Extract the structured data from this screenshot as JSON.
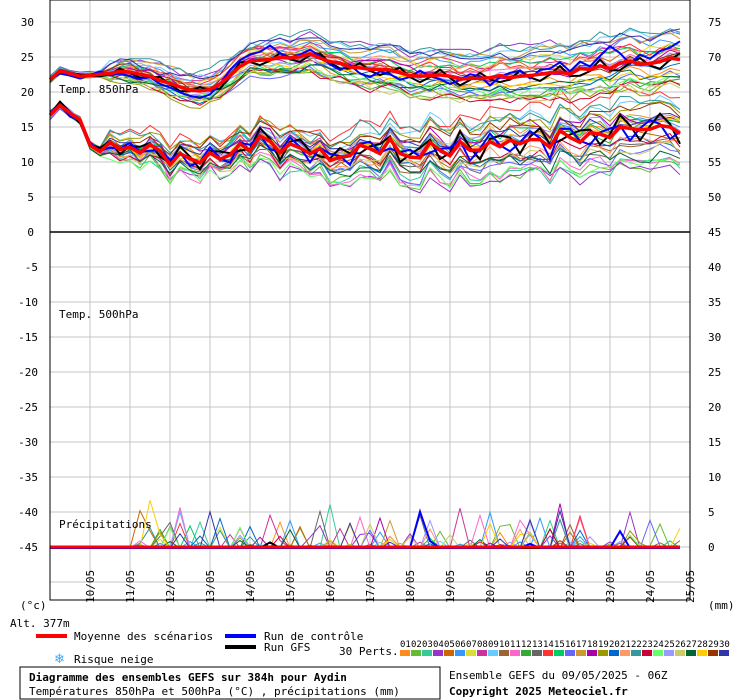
{
  "chart_data": {
    "type": "line",
    "panels": [
      {
        "label": "Temp. 850hPa",
        "left_ticks": [
          30,
          25,
          20,
          15,
          10,
          5,
          0
        ],
        "right_ticks": [
          75,
          70,
          65,
          60,
          55,
          50
        ]
      },
      {
        "label": "Temp. 500hPa",
        "left_ticks": [
          -5,
          -10,
          -15,
          -20,
          -25,
          -30,
          -35,
          -40,
          -45
        ],
        "right_ticks": [
          45,
          40,
          35,
          30,
          25,
          20,
          15,
          10,
          5,
          0
        ]
      },
      {
        "label": "Précipitations"
      }
    ],
    "left_unit": "(°c)",
    "right_unit": "(mm)",
    "x_ticks": [
      "10/05",
      "11/05",
      "12/05",
      "13/05",
      "14/05",
      "15/05",
      "16/05",
      "17/05",
      "18/05",
      "19/05",
      "20/05",
      "21/05",
      "22/05",
      "23/05",
      "24/05",
      "25/05"
    ],
    "altitude": "Alt. 377m",
    "mean_t850": [
      16.7,
      18.1,
      17.0,
      16.0,
      12.4,
      11.5,
      12.8,
      11.8,
      12.1,
      11.3,
      12.5,
      11.6,
      9.6,
      11.2,
      10.5,
      9.9,
      11.3,
      10.4,
      11.0,
      12.6,
      11.6,
      13.7,
      13.0,
      11.3,
      12.6,
      12.0,
      11.2,
      11.9,
      10.2,
      10.7,
      10.9,
      12.4,
      11.9,
      11.2,
      13.3,
      11.2,
      10.7,
      10.6,
      12.8,
      11.7,
      10.9,
      12.9,
      11.7,
      11.7,
      12.9,
      12.2,
      13.1,
      12.6,
      13.2,
      13.2,
      12.1,
      14.5,
      13.5,
      12.8,
      14.2,
      14.0,
      13.5,
      15.0,
      14.8,
      14.6,
      14.7,
      15.2,
      15.0,
      14.1
    ],
    "mean_t500": [
      -16.4,
      -15.1,
      -15.5,
      -15.9,
      -15.8,
      -15.6,
      -15.5,
      -15.2,
      -15.3,
      -15.6,
      -15.9,
      -16.5,
      -16.9,
      -17.4,
      -17.9,
      -18.0,
      -17.8,
      -17.0,
      -15.8,
      -14.5,
      -13.7,
      -13.6,
      -13.5,
      -13.2,
      -13.3,
      -13.1,
      -12.7,
      -13.3,
      -13.8,
      -14.0,
      -14.6,
      -14.7,
      -14.9,
      -14.9,
      -15.0,
      -15.4,
      -15.8,
      -15.9,
      -15.8,
      -15.7,
      -15.9,
      -16.3,
      -16.2,
      -16.2,
      -16.1,
      -15.8,
      -16.1,
      -15.9,
      -15.8,
      -15.6,
      -15.4,
      -15.3,
      -15.6,
      -14.8,
      -14.9,
      -14.4,
      -14.8,
      -14.0,
      -13.7,
      -14.2,
      -14.1,
      -13.8,
      -13.3,
      -13.5
    ],
    "control_t500": [
      -16.4,
      -15.5,
      -15.8,
      -16.2,
      -15.7,
      -15.2,
      -15.8,
      -15.5,
      -15.9,
      -16.3,
      -16.0,
      -17.0,
      -17.5,
      -18.2,
      -18.7,
      -19.0,
      -18.5,
      -17.0,
      -15.0,
      -13.6,
      -12.8,
      -12.4,
      -11.5,
      -12.6,
      -13.2,
      -12.8,
      -12.1,
      -13.0,
      -14.2,
      -15.0,
      -14.3,
      -15.5,
      -16.0,
      -15.2,
      -15.6,
      -16.4,
      -16.0,
      -15.1,
      -15.9,
      -16.3,
      -17.0,
      -16.4,
      -15.6,
      -15.9,
      -17.2,
      -16.0,
      -15.4,
      -15.1,
      -16.2,
      -15.0,
      -14.8,
      -13.9,
      -15.2,
      -13.8,
      -14.5,
      -13.0,
      -11.6,
      -12.6,
      -14.1,
      -12.8,
      -13.4,
      -12.3,
      -11.8,
      -10.9
    ],
    "legend": {
      "mean": "Moyenne des scénarios",
      "control": "Run de contrôle",
      "gfs": "Run GFS",
      "snow": "Risque neige",
      "perts_label": "30 Perts.",
      "pert_numbers": [
        "01",
        "02",
        "03",
        "04",
        "05",
        "06",
        "07",
        "08",
        "09",
        "10",
        "11",
        "12",
        "13",
        "14",
        "15",
        "16",
        "17",
        "18",
        "19",
        "20",
        "21",
        "22",
        "23",
        "24",
        "25",
        "26",
        "27",
        "28",
        "29",
        "30"
      ],
      "pert_colors": [
        "#ff8c1a",
        "#66bb33",
        "#33cc99",
        "#9933cc",
        "#cc6600",
        "#3399ff",
        "#dddd33",
        "#cc3399",
        "#66ccff",
        "#996633",
        "#ff66cc",
        "#33aa33",
        "#666666",
        "#ff3333",
        "#00cc66",
        "#6666ff",
        "#cc9933",
        "#aa00aa",
        "#999900",
        "#0066cc",
        "#ff9966",
        "#339999",
        "#cc0033",
        "#66ff66",
        "#9999ff",
        "#cccc66",
        "#006633",
        "#ffcc00",
        "#993300",
        "#3333aa"
      ]
    },
    "colors": {
      "mean": "#ff0000",
      "control": "#0000ff",
      "gfs": "#000000",
      "snow": "#33aaff"
    }
  },
  "footer": {
    "title": "Diagramme des ensembles GEFS sur 384h pour Aydin",
    "subtitle": "Températures 850hPa et 500hPa (°C) , précipitations (mm)",
    "run_info": "Ensemble GEFS du 09/05/2025 - 06Z",
    "copyright": "Copyright 2025 Meteociel.fr"
  }
}
